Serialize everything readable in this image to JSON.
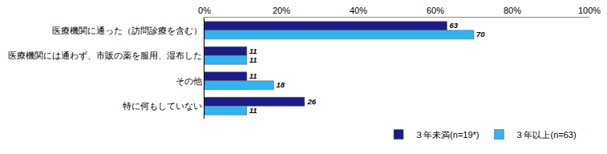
{
  "chart_data": {
    "type": "bar",
    "orientation": "horizontal",
    "categories": [
      "医療機関に通った（訪問診療を含む）",
      "医療機関には通わず、市販の薬を服用、湿布した",
      "その他",
      "特に何もしていない"
    ],
    "series": [
      {
        "name": "３年未満(n=19*)",
        "color": "#1c1c86",
        "values": [
          63,
          11,
          11,
          26
        ]
      },
      {
        "name": "３年以上(n=63)",
        "color": "#33b4f0",
        "values": [
          70,
          11,
          18,
          11
        ]
      }
    ],
    "xlim": [
      0,
      100
    ],
    "xticks": [
      {
        "value": 0,
        "label": "0%"
      },
      {
        "value": 20,
        "label": "20%"
      },
      {
        "value": 40,
        "label": "40%"
      },
      {
        "value": 60,
        "label": "60%"
      },
      {
        "value": 80,
        "label": "80%"
      },
      {
        "value": 100,
        "label": "100%"
      }
    ],
    "grid": false,
    "legend": "bottom",
    "data_labels": true
  }
}
